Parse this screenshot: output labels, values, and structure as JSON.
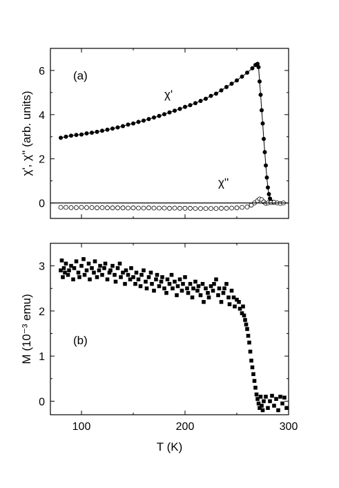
{
  "chart_data": [
    {
      "type": "scatter",
      "panel_label": "(a)",
      "ylabel": "χ', χ'' (arb. units)",
      "xlabel": "",
      "xlim": [
        70,
        300
      ],
      "ylim": [
        -0.7,
        7.0
      ],
      "xticks": [
        100,
        200,
        300
      ],
      "yticks": [
        0,
        2,
        4,
        6
      ],
      "yticklabels": [
        "0",
        "2",
        "4",
        "6"
      ],
      "show_xticklabels": false,
      "reference_line_y": 0,
      "annotations": [
        {
          "text": "χ'",
          "x": 180,
          "y": 4.75
        },
        {
          "text": "χ''",
          "x": 232,
          "y": 0.75
        }
      ],
      "series": [
        {
          "name": "χ'",
          "marker": "filled-circle",
          "line": true,
          "x": [
            80,
            85,
            90,
            95,
            100,
            105,
            110,
            115,
            120,
            125,
            130,
            135,
            140,
            145,
            150,
            155,
            160,
            165,
            170,
            175,
            180,
            185,
            190,
            195,
            200,
            205,
            210,
            215,
            220,
            225,
            230,
            235,
            240,
            245,
            250,
            255,
            260,
            265,
            268,
            270,
            271,
            272,
            273,
            274,
            275,
            276,
            277,
            278,
            279,
            280,
            281,
            282,
            283,
            285
          ],
          "y": [
            2.95,
            3.0,
            3.05,
            3.08,
            3.1,
            3.15,
            3.18,
            3.22,
            3.27,
            3.32,
            3.37,
            3.42,
            3.48,
            3.55,
            3.6,
            3.67,
            3.73,
            3.8,
            3.87,
            3.94,
            4.02,
            4.1,
            4.18,
            4.26,
            4.35,
            4.43,
            4.52,
            4.62,
            4.72,
            4.85,
            4.95,
            5.1,
            5.25,
            5.4,
            5.55,
            5.72,
            5.9,
            6.1,
            6.25,
            6.3,
            6.15,
            5.5,
            4.9,
            4.2,
            3.6,
            2.9,
            2.3,
            1.7,
            1.15,
            0.7,
            0.4,
            0.2,
            0.08,
            0.02
          ]
        },
        {
          "name": "χ''",
          "marker": "open-circle",
          "line": false,
          "x": [
            80,
            85,
            90,
            95,
            100,
            105,
            110,
            115,
            120,
            125,
            130,
            135,
            140,
            145,
            150,
            155,
            160,
            165,
            170,
            175,
            180,
            185,
            190,
            195,
            200,
            205,
            210,
            215,
            220,
            225,
            230,
            235,
            240,
            245,
            250,
            255,
            260,
            264,
            267,
            270,
            272,
            274,
            276,
            278,
            280,
            283,
            286,
            289,
            292,
            295
          ],
          "y": [
            -0.2,
            -0.2,
            -0.21,
            -0.21,
            -0.2,
            -0.21,
            -0.21,
            -0.22,
            -0.21,
            -0.22,
            -0.22,
            -0.22,
            -0.22,
            -0.23,
            -0.22,
            -0.23,
            -0.23,
            -0.22,
            -0.23,
            -0.23,
            -0.23,
            -0.24,
            -0.23,
            -0.24,
            -0.24,
            -0.24,
            -0.25,
            -0.25,
            -0.25,
            -0.25,
            -0.25,
            -0.24,
            -0.24,
            -0.23,
            -0.22,
            -0.2,
            -0.18,
            -0.1,
            0.0,
            0.1,
            0.18,
            0.15,
            0.05,
            -0.02,
            0.0,
            0.02,
            0.03,
            0.0,
            -0.02,
            0.0
          ]
        }
      ]
    },
    {
      "type": "scatter",
      "panel_label": "(b)",
      "ylabel": "M (10⁻³ emu)",
      "xlabel": "T (K)",
      "xlim": [
        70,
        300
      ],
      "ylim": [
        -0.3,
        3.5
      ],
      "xticks": [
        100,
        200,
        300
      ],
      "xticklabels": [
        "100",
        "200",
        "300"
      ],
      "yticks": [
        0,
        1,
        2,
        3
      ],
      "yticklabels": [
        "0",
        "1",
        "2",
        "3"
      ],
      "series": [
        {
          "name": "M",
          "marker": "filled-square",
          "line": false,
          "x": [
            80,
            81,
            82,
            83,
            84,
            85,
            87,
            88,
            90,
            92,
            93,
            95,
            97,
            98,
            100,
            102,
            103,
            105,
            107,
            108,
            110,
            112,
            113,
            115,
            117,
            118,
            120,
            122,
            123,
            125,
            127,
            128,
            130,
            132,
            133,
            135,
            137,
            138,
            140,
            142,
            143,
            145,
            147,
            148,
            150,
            152,
            153,
            155,
            157,
            158,
            160,
            162,
            163,
            165,
            167,
            168,
            170,
            172,
            173,
            175,
            177,
            178,
            180,
            182,
            183,
            185,
            187,
            188,
            190,
            192,
            193,
            195,
            197,
            198,
            200,
            202,
            203,
            205,
            207,
            208,
            210,
            212,
            213,
            215,
            217,
            218,
            220,
            222,
            223,
            225,
            227,
            228,
            230,
            232,
            233,
            235,
            237,
            238,
            240,
            242,
            243,
            245,
            247,
            248,
            250,
            252,
            253,
            255,
            256,
            257,
            258,
            259,
            260,
            261,
            262,
            263,
            264,
            265,
            266,
            267,
            268,
            269,
            270,
            271,
            272,
            273,
            274,
            275,
            276,
            278,
            280,
            282,
            284,
            286,
            288,
            290,
            292,
            294,
            296,
            298
          ],
          "y": [
            2.9,
            3.12,
            2.75,
            2.95,
            2.85,
            3.05,
            2.8,
            2.9,
            3.0,
            2.7,
            2.95,
            3.1,
            2.85,
            2.75,
            3.0,
            3.15,
            2.8,
            2.9,
            3.05,
            2.7,
            2.95,
            2.85,
            3.1,
            2.75,
            2.9,
            3.0,
            2.8,
            2.95,
            3.05,
            2.7,
            2.85,
            2.9,
            3.0,
            2.8,
            2.65,
            2.95,
            3.05,
            2.75,
            2.85,
            2.6,
            2.9,
            2.8,
            2.7,
            2.95,
            2.75,
            2.6,
            2.85,
            2.7,
            2.55,
            2.8,
            2.9,
            2.65,
            2.5,
            2.75,
            2.85,
            2.6,
            2.45,
            2.7,
            2.8,
            2.55,
            2.65,
            2.75,
            2.5,
            2.4,
            2.7,
            2.6,
            2.8,
            2.5,
            2.65,
            2.35,
            2.55,
            2.7,
            2.45,
            2.6,
            2.75,
            2.5,
            2.4,
            2.6,
            2.3,
            2.5,
            2.65,
            2.45,
            2.55,
            2.35,
            2.6,
            2.2,
            2.5,
            2.4,
            2.3,
            2.55,
            2.45,
            2.6,
            2.7,
            2.35,
            2.5,
            2.2,
            2.4,
            2.5,
            2.6,
            2.3,
            2.15,
            2.45,
            2.3,
            2.1,
            2.25,
            2.2,
            2.05,
            1.95,
            2.1,
            1.9,
            1.8,
            1.7,
            1.6,
            1.45,
            1.3,
            1.1,
            0.9,
            0.75,
            0.6,
            0.45,
            0.3,
            0.15,
            0.05,
            -0.05,
            -0.15,
            0.1,
            -0.1,
            -0.2,
            0.0,
            0.1,
            -0.15,
            0.0,
            0.12,
            -0.1,
            0.05,
            -0.2,
            0.1,
            -0.05,
            0.08,
            -0.15
          ]
        }
      ]
    }
  ]
}
